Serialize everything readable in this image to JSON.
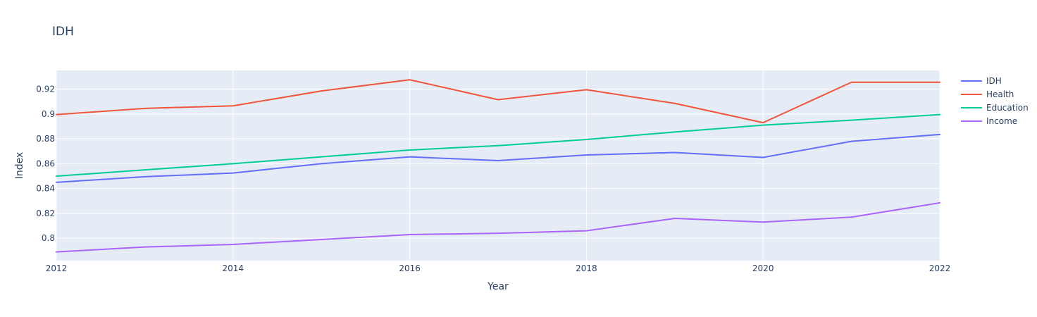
{
  "chart_data": {
    "type": "line",
    "title": "IDH",
    "xlabel": "Year",
    "ylabel": "Index",
    "xlim": [
      2012,
      2022
    ],
    "ylim": [
      0.782,
      0.935
    ],
    "x": [
      2012,
      2013,
      2014,
      2015,
      2016,
      2017,
      2018,
      2019,
      2020,
      2021,
      2022
    ],
    "x_ticks": [
      "2012",
      "2014",
      "2016",
      "2018",
      "2020",
      "2022"
    ],
    "y_ticks": [
      "0.8",
      "0.82",
      "0.84",
      "0.86",
      "0.88",
      "0.9",
      "0.92"
    ],
    "grid": true,
    "legend_position": "top-right",
    "series": [
      {
        "name": "IDH",
        "color": "#636efa",
        "values": [
          0.845,
          0.8495,
          0.8525,
          0.86,
          0.8655,
          0.8625,
          0.867,
          0.869,
          0.865,
          0.878,
          0.8835
        ]
      },
      {
        "name": "Health",
        "color": "#ef553b",
        "values": [
          0.8995,
          0.9045,
          0.9065,
          0.9185,
          0.9275,
          0.9115,
          0.9195,
          0.9085,
          0.893,
          0.9255,
          0.9255
        ]
      },
      {
        "name": "Education",
        "color": "#00cc96",
        "values": [
          0.85,
          0.855,
          0.86,
          0.8655,
          0.871,
          0.8745,
          0.8795,
          0.8855,
          0.891,
          0.895,
          0.8995
        ]
      },
      {
        "name": "Income",
        "color": "#ab63fa",
        "values": [
          0.789,
          0.793,
          0.795,
          0.799,
          0.803,
          0.804,
          0.806,
          0.816,
          0.813,
          0.817,
          0.8285
        ]
      }
    ]
  }
}
